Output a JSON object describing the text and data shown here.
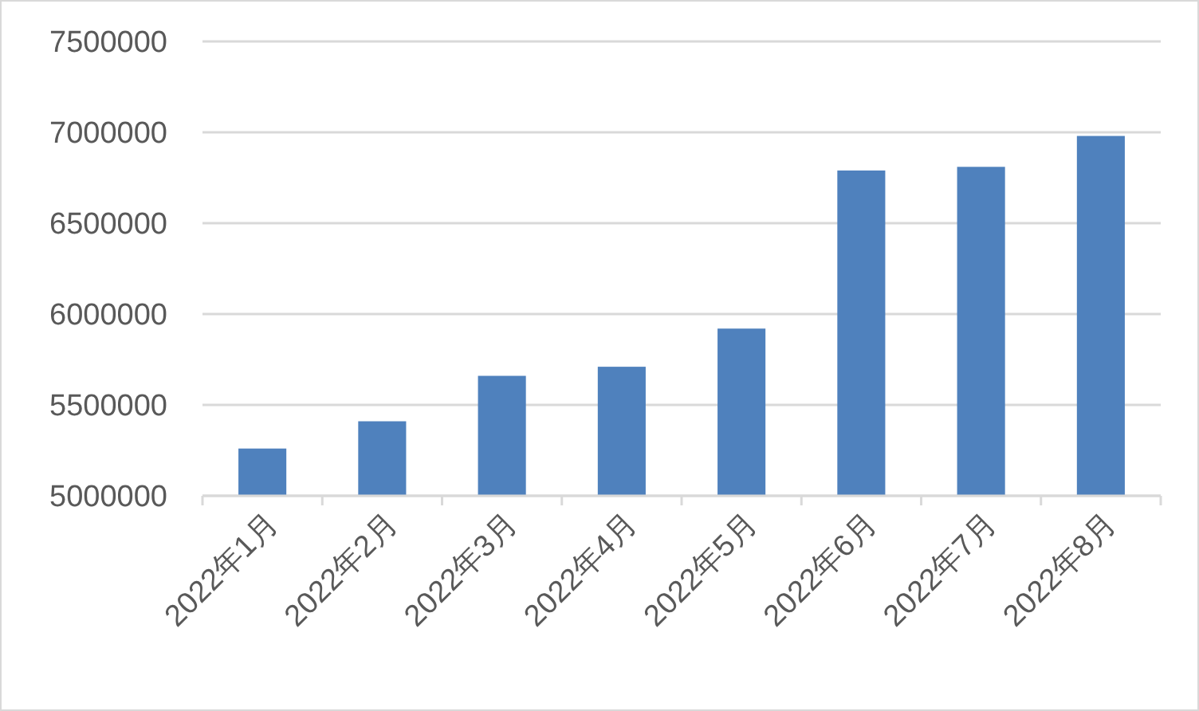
{
  "chart_data": {
    "type": "bar",
    "categories": [
      "2022年1月",
      "2022年2月",
      "2022年3月",
      "2022年4月",
      "2022年5月",
      "2022年6月",
      "2022年7月",
      "2022年8月"
    ],
    "values": [
      5260000,
      5410000,
      5660000,
      5710000,
      5920000,
      6790000,
      6810000,
      6980000
    ],
    "color": "#4f81bd",
    "ylim": [
      5000000,
      7500000
    ],
    "yticks": [
      5000000,
      5500000,
      6000000,
      6500000,
      7000000,
      7500000
    ],
    "grid": "y"
  }
}
